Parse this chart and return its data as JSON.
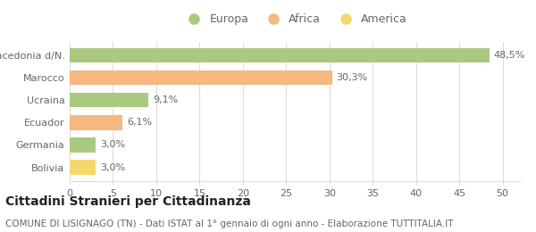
{
  "categories": [
    "Bolivia",
    "Germania",
    "Ecuador",
    "Ucraina",
    "Marocco",
    "Macedonia d/N."
  ],
  "values": [
    3.0,
    3.0,
    6.1,
    9.1,
    30.3,
    48.5
  ],
  "labels": [
    "3,0%",
    "3,0%",
    "6,1%",
    "9,1%",
    "30,3%",
    "48,5%"
  ],
  "colors": [
    "#f5d76e",
    "#a8c97f",
    "#f5b87e",
    "#a8c97f",
    "#f5b87e",
    "#a8c97f"
  ],
  "legend": [
    {
      "label": "Europa",
      "color": "#a8c97f"
    },
    {
      "label": "Africa",
      "color": "#f5b87e"
    },
    {
      "label": "America",
      "color": "#f5d76e"
    }
  ],
  "xlim": [
    0,
    52
  ],
  "xticks": [
    0,
    5,
    10,
    15,
    20,
    25,
    30,
    35,
    40,
    45,
    50
  ],
  "title_bold": "Cittadini Stranieri per Cittadinanza",
  "subtitle": "COMUNE DI LISIGNAGO (TN) - Dati ISTAT al 1° gennaio di ogni anno - Elaborazione TUTTITALIA.IT",
  "background_color": "#ffffff",
  "bar_edge_color": "none",
  "grid_color": "#dddddd",
  "title_fontsize": 10,
  "subtitle_fontsize": 7.5,
  "label_fontsize": 8,
  "tick_fontsize": 8,
  "legend_fontsize": 9,
  "text_color": "#666666",
  "title_color": "#222222"
}
